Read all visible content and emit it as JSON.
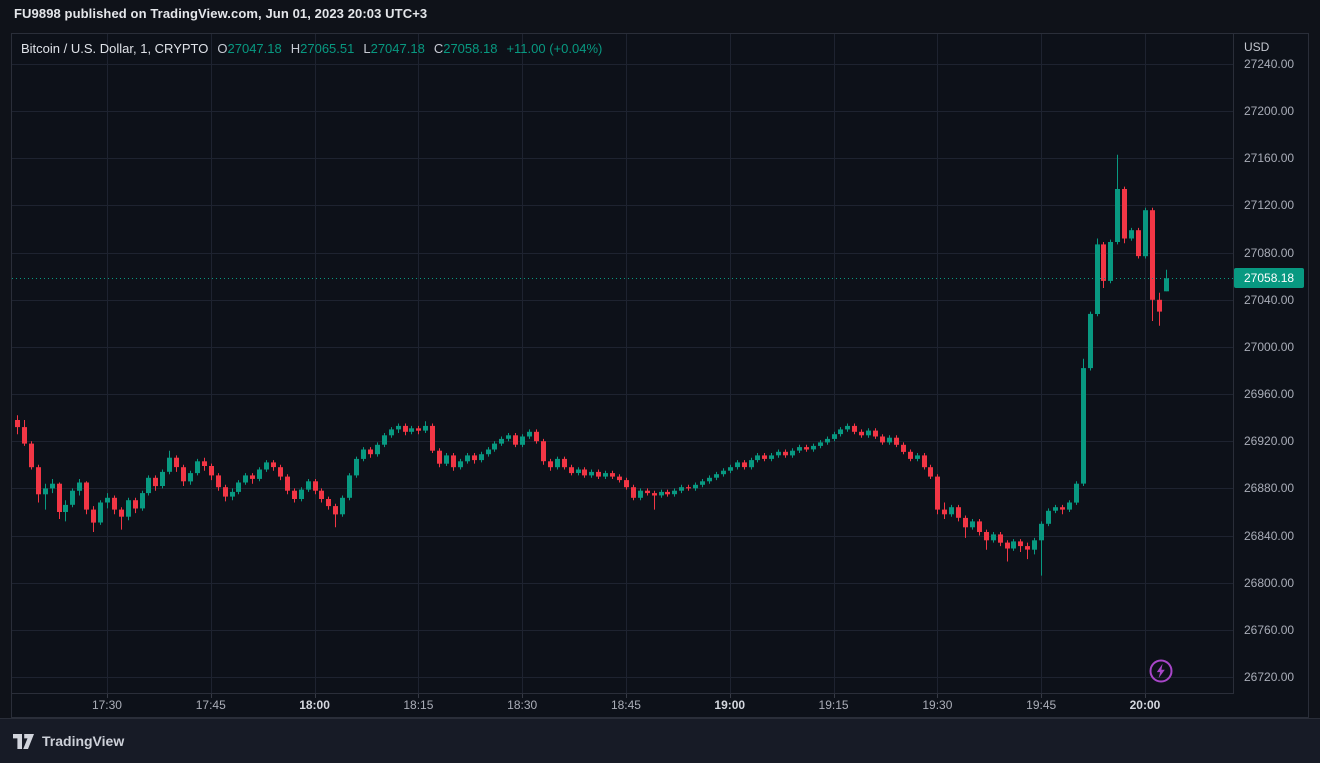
{
  "top_bar": {
    "text": "FU9898 published on TradingView.com, Jun 01, 2023 20:03 UTC+3"
  },
  "header": {
    "symbol_title": "Bitcoin / U.S. Dollar, 1, CRYPTO",
    "open_label": "O",
    "open_value": "27047.18",
    "high_label": "H",
    "high_value": "27065.51",
    "low_label": "L",
    "low_value": "27047.18",
    "close_label": "C",
    "close_value": "27058.18",
    "change": "+11.00 (+0.04%)"
  },
  "price_axis": {
    "currency": "USD",
    "last_price": 27058.18,
    "last_price_label": "27058.18",
    "ticks": [
      {
        "value": 27240,
        "label": "27240.00"
      },
      {
        "value": 27200,
        "label": "27200.00"
      },
      {
        "value": 27160,
        "label": "27160.00"
      },
      {
        "value": 27120,
        "label": "27120.00"
      },
      {
        "value": 27080,
        "label": "27080.00"
      },
      {
        "value": 27040,
        "label": "27040.00"
      },
      {
        "value": 27000,
        "label": "27000.00"
      },
      {
        "value": 26960,
        "label": "26960.00"
      },
      {
        "value": 26920,
        "label": "26920.00"
      },
      {
        "value": 26880,
        "label": "26880.00"
      },
      {
        "value": 26840,
        "label": "26840.00"
      },
      {
        "value": 26800,
        "label": "26800.00"
      },
      {
        "value": 26760,
        "label": "26760.00"
      },
      {
        "value": 26720,
        "label": "26720.00"
      }
    ]
  },
  "time_axis": {
    "ticks": [
      {
        "time": "17:30",
        "label": "17:30",
        "bold": false
      },
      {
        "time": "17:45",
        "label": "17:45",
        "bold": false
      },
      {
        "time": "18:00",
        "label": "18:00",
        "bold": true
      },
      {
        "time": "18:15",
        "label": "18:15",
        "bold": false
      },
      {
        "time": "18:30",
        "label": "18:30",
        "bold": false
      },
      {
        "time": "18:45",
        "label": "18:45",
        "bold": false
      },
      {
        "time": "19:00",
        "label": "19:00",
        "bold": true
      },
      {
        "time": "19:15",
        "label": "19:15",
        "bold": false
      },
      {
        "time": "19:30",
        "label": "19:30",
        "bold": false
      },
      {
        "time": "19:45",
        "label": "19:45",
        "bold": false
      },
      {
        "time": "20:00",
        "label": "20:00",
        "bold": true
      }
    ]
  },
  "footer": {
    "brand": "TradingView"
  },
  "colors": {
    "up": "#089981",
    "down": "#f23645",
    "grid": "#1e2330",
    "accent_purple": "#a846c9"
  },
  "chart_data": {
    "type": "candlestick",
    "title": "Bitcoin / U.S. Dollar",
    "exchange": "CRYPTO",
    "interval": "1",
    "currency": "USD",
    "start_time": "17:17",
    "end_time": "20:03",
    "interval_minutes": 1,
    "grid": true,
    "legend_position": "top-left",
    "y_axis": {
      "min": 26720,
      "max": 27240,
      "grid_step": 40
    },
    "last_candle": {
      "open": 27047.18,
      "high": 27065.51,
      "low": 27047.18,
      "close": 27058.18,
      "change": "+11.00 (+0.04%)"
    },
    "candles": [
      [
        26938,
        26942,
        26926,
        26932
      ],
      [
        26932,
        26938,
        26916,
        26918
      ],
      [
        26918,
        26920,
        26896,
        26898
      ],
      [
        26898,
        26900,
        26868,
        26875
      ],
      [
        26875,
        26884,
        26862,
        26880
      ],
      [
        26880,
        26888,
        26876,
        26884
      ],
      [
        26884,
        26885,
        26854,
        26860
      ],
      [
        26860,
        26870,
        26852,
        26866
      ],
      [
        26866,
        26880,
        26864,
        26878
      ],
      [
        26878,
        26888,
        26874,
        26885
      ],
      [
        26885,
        26886,
        26858,
        26862
      ],
      [
        26862,
        26865,
        26843,
        26851
      ],
      [
        26851,
        26870,
        26849,
        26868
      ],
      [
        26868,
        26876,
        26863,
        26872
      ],
      [
        26872,
        26874,
        26858,
        26862
      ],
      [
        26862,
        26864,
        26845,
        26856
      ],
      [
        26856,
        26872,
        26853,
        26870
      ],
      [
        26870,
        26872,
        26859,
        26863
      ],
      [
        26863,
        26878,
        26861,
        26876
      ],
      [
        26876,
        26891,
        26874,
        26889
      ],
      [
        26889,
        26891,
        26878,
        26882
      ],
      [
        26882,
        26896,
        26880,
        26894
      ],
      [
        26894,
        26912,
        26892,
        26906
      ],
      [
        26906,
        26908,
        26894,
        26898
      ],
      [
        26898,
        26900,
        26882,
        26886
      ],
      [
        26886,
        26895,
        26883,
        26893
      ],
      [
        26893,
        26905,
        26891,
        26903
      ],
      [
        26903,
        26906,
        26895,
        26899
      ],
      [
        26899,
        26901,
        26887,
        26891
      ],
      [
        26891,
        26893,
        26878,
        26881
      ],
      [
        26881,
        26883,
        26869,
        26873
      ],
      [
        26873,
        26880,
        26870,
        26877
      ],
      [
        26877,
        26887,
        26875,
        26885
      ],
      [
        26885,
        26893,
        26883,
        26891
      ],
      [
        26891,
        26893,
        26884,
        26888
      ],
      [
        26888,
        26898,
        26886,
        26896
      ],
      [
        26896,
        26904,
        26894,
        26902
      ],
      [
        26902,
        26904,
        26895,
        26898
      ],
      [
        26898,
        26900,
        26887,
        26890
      ],
      [
        26890,
        26892,
        26875,
        26878
      ],
      [
        26878,
        26880,
        26868,
        26871
      ],
      [
        26871,
        26881,
        26869,
        26879
      ],
      [
        26879,
        26888,
        26877,
        26886
      ],
      [
        26886,
        26888,
        26875,
        26878
      ],
      [
        26878,
        26880,
        26868,
        26871
      ],
      [
        26871,
        26873,
        26862,
        26865
      ],
      [
        26865,
        26867,
        26847,
        26858
      ],
      [
        26858,
        26874,
        26856,
        26872
      ],
      [
        26872,
        26893,
        26870,
        26891
      ],
      [
        26891,
        26907,
        26889,
        26905
      ],
      [
        26905,
        26915,
        26903,
        26913
      ],
      [
        26913,
        26915,
        26906,
        26909
      ],
      [
        26909,
        26919,
        26907,
        26917
      ],
      [
        26917,
        26927,
        26915,
        26925
      ],
      [
        26925,
        26932,
        26923,
        26930
      ],
      [
        26930,
        26935,
        26927,
        26933
      ],
      [
        26933,
        26935,
        26925,
        26928
      ],
      [
        26928,
        26933,
        26926,
        26931
      ],
      [
        26931,
        26933,
        26926,
        26929
      ],
      [
        26929,
        26937,
        26927,
        26933
      ],
      [
        26933,
        26935,
        26910,
        26912
      ],
      [
        26912,
        26914,
        26898,
        26901
      ],
      [
        26901,
        26910,
        26899,
        26908
      ],
      [
        26908,
        26910,
        26895,
        26898
      ],
      [
        26898,
        26905,
        26896,
        26903
      ],
      [
        26903,
        26910,
        26901,
        26908
      ],
      [
        26908,
        26910,
        26901,
        26904
      ],
      [
        26904,
        26911,
        26902,
        26909
      ],
      [
        26909,
        26915,
        26907,
        26913
      ],
      [
        26913,
        26920,
        26911,
        26918
      ],
      [
        26918,
        26924,
        26916,
        26922
      ],
      [
        26922,
        26927,
        26920,
        26925
      ],
      [
        26925,
        26927,
        26915,
        26917
      ],
      [
        26917,
        26926,
        26915,
        26924
      ],
      [
        26924,
        26930,
        26922,
        26928
      ],
      [
        26928,
        26930,
        26918,
        26920
      ],
      [
        26920,
        26922,
        26900,
        26903
      ],
      [
        26903,
        26905,
        26895,
        26898
      ],
      [
        26898,
        26907,
        26896,
        26905
      ],
      [
        26905,
        26907,
        26896,
        26898
      ],
      [
        26898,
        26900,
        26891,
        26893
      ],
      [
        26893,
        26898,
        26891,
        26896
      ],
      [
        26896,
        26898,
        26889,
        26891
      ],
      [
        26891,
        26896,
        26889,
        26894
      ],
      [
        26894,
        26896,
        26888,
        26890
      ],
      [
        26890,
        26895,
        26888,
        26893
      ],
      [
        26893,
        26895,
        26888,
        26890
      ],
      [
        26890,
        26892,
        26885,
        26887
      ],
      [
        26887,
        26889,
        26879,
        26881
      ],
      [
        26881,
        26883,
        26870,
        26872
      ],
      [
        26872,
        26880,
        26870,
        26878
      ],
      [
        26878,
        26880,
        26874,
        26876
      ],
      [
        26876,
        26878,
        26862,
        26874
      ],
      [
        26874,
        26879,
        26872,
        26877
      ],
      [
        26877,
        26879,
        26873,
        26875
      ],
      [
        26875,
        26880,
        26873,
        26878
      ],
      [
        26878,
        26883,
        26876,
        26881
      ],
      [
        26881,
        26883,
        26878,
        26880
      ],
      [
        26880,
        26885,
        26878,
        26883
      ],
      [
        26883,
        26888,
        26881,
        26886
      ],
      [
        26886,
        26891,
        26884,
        26889
      ],
      [
        26889,
        26894,
        26887,
        26892
      ],
      [
        26892,
        26897,
        26890,
        26895
      ],
      [
        26895,
        26900,
        26893,
        26898
      ],
      [
        26898,
        26904,
        26896,
        26902
      ],
      [
        26902,
        26904,
        26896,
        26898
      ],
      [
        26898,
        26906,
        26896,
        26904
      ],
      [
        26904,
        26910,
        26902,
        26908
      ],
      [
        26908,
        26910,
        26903,
        26905
      ],
      [
        26905,
        26910,
        26903,
        26908
      ],
      [
        26908,
        26913,
        26906,
        26911
      ],
      [
        26911,
        26913,
        26906,
        26908
      ],
      [
        26908,
        26914,
        26906,
        26912
      ],
      [
        26912,
        26917,
        26910,
        26915
      ],
      [
        26915,
        26917,
        26911,
        26913
      ],
      [
        26913,
        26918,
        26911,
        26916
      ],
      [
        26916,
        26921,
        26914,
        26919
      ],
      [
        26919,
        26924,
        26917,
        26922
      ],
      [
        26922,
        26928,
        26920,
        26926
      ],
      [
        26926,
        26932,
        26924,
        26930
      ],
      [
        26930,
        26935,
        26928,
        26933
      ],
      [
        26933,
        26935,
        26926,
        26928
      ],
      [
        26928,
        26930,
        26923,
        26925
      ],
      [
        26925,
        26931,
        26923,
        26929
      ],
      [
        26929,
        26931,
        26922,
        26924
      ],
      [
        26924,
        26926,
        26917,
        26919
      ],
      [
        26919,
        26925,
        26917,
        26923
      ],
      [
        26923,
        26925,
        26915,
        26917
      ],
      [
        26917,
        26919,
        26909,
        26911
      ],
      [
        26911,
        26913,
        26903,
        26905
      ],
      [
        26905,
        26910,
        26903,
        26908
      ],
      [
        26908,
        26910,
        26896,
        26898
      ],
      [
        26898,
        26900,
        26888,
        26890
      ],
      [
        26890,
        26892,
        26858,
        26862
      ],
      [
        26862,
        26868,
        26854,
        26858
      ],
      [
        26858,
        26866,
        26856,
        26864
      ],
      [
        26864,
        26866,
        26852,
        26855
      ],
      [
        26855,
        26857,
        26838,
        26847
      ],
      [
        26847,
        26854,
        26845,
        26852
      ],
      [
        26852,
        26854,
        26840,
        26843
      ],
      [
        26843,
        26845,
        26828,
        26836
      ],
      [
        26836,
        26843,
        26834,
        26841
      ],
      [
        26841,
        26843,
        26831,
        26834
      ],
      [
        26834,
        26836,
        26818,
        26829
      ],
      [
        26829,
        26837,
        26827,
        26835
      ],
      [
        26835,
        26837,
        26826,
        26831
      ],
      [
        26831,
        26834,
        26820,
        26828
      ],
      [
        26828,
        26838,
        26824,
        26836
      ],
      [
        26836,
        26852,
        26806,
        26850
      ],
      [
        26850,
        26863,
        26848,
        26861
      ],
      [
        26861,
        26866,
        26859,
        26864
      ],
      [
        26864,
        26866,
        26858,
        26862
      ],
      [
        26862,
        26870,
        26860,
        26868
      ],
      [
        26868,
        26886,
        26866,
        26884
      ],
      [
        26884,
        26990,
        26882,
        26982
      ],
      [
        26982,
        27030,
        26980,
        27028
      ],
      [
        27028,
        27092,
        27026,
        27087
      ],
      [
        27087,
        27089,
        27050,
        27056
      ],
      [
        27056,
        27091,
        27054,
        27089
      ],
      [
        27089,
        27163,
        27087,
        27134
      ],
      [
        27134,
        27136,
        27088,
        27092
      ],
      [
        27092,
        27101,
        27090,
        27099
      ],
      [
        27099,
        27101,
        27075,
        27077
      ],
      [
        27077,
        27118,
        27075,
        27116
      ],
      [
        27116,
        27118,
        27022,
        27040
      ],
      [
        27040,
        27046,
        27018,
        27030
      ],
      [
        27047.18,
        27065.51,
        27047.18,
        27058.18
      ]
    ]
  }
}
